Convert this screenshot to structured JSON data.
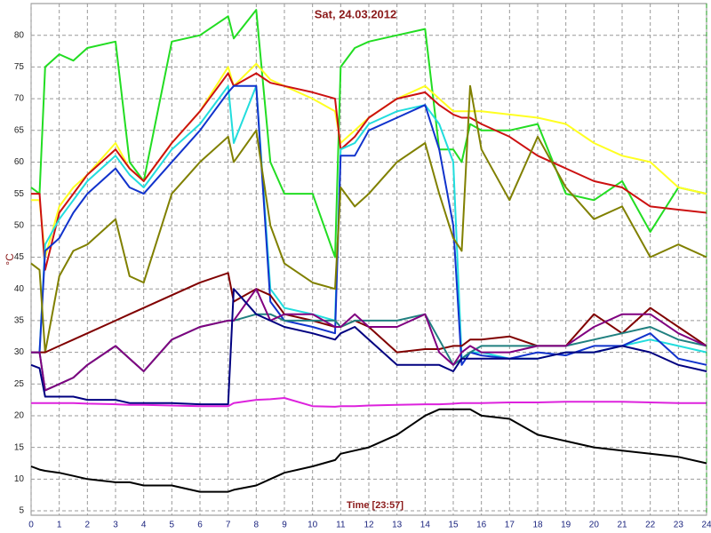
{
  "chart_data": {
    "type": "line",
    "title": "Sat, 24.03.2012",
    "x_label": "Time [23:57]",
    "y_label": "°C",
    "x": [
      0,
      0.3,
      0.5,
      1,
      1.5,
      2,
      3,
      3.5,
      4,
      5,
      6,
      7,
      7.2,
      8,
      8.5,
      9,
      10,
      10.8,
      11,
      11.5,
      12,
      13,
      14,
      14.5,
      15,
      15.3,
      15.6,
      16,
      17,
      18,
      19,
      20,
      21,
      22,
      23,
      24
    ],
    "xlim": [
      0,
      24
    ],
    "xticks": [
      0,
      1,
      2,
      3,
      4,
      5,
      6,
      7,
      8,
      9,
      10,
      11,
      12,
      13,
      14,
      15,
      16,
      17,
      18,
      19,
      20,
      21,
      22,
      23,
      24
    ],
    "ylim": [
      4.3,
      85
    ],
    "yticks": [
      5,
      10,
      15,
      20,
      25,
      30,
      35,
      40,
      45,
      50,
      55,
      60,
      65,
      70,
      75,
      80
    ],
    "grid": true,
    "series": [
      {
        "color": "#22dd22",
        "values": [
          56,
          55,
          75,
          77,
          76,
          78,
          79,
          60,
          57,
          79,
          80,
          83,
          79.5,
          84,
          60,
          55,
          55,
          45,
          75,
          78,
          79,
          80,
          81,
          62,
          62,
          60,
          66,
          65,
          65,
          66,
          55,
          54,
          57,
          49,
          56,
          55
        ]
      },
      {
        "color": "#ffff22",
        "values": [
          54,
          54,
          45,
          53,
          56,
          58,
          63,
          59,
          57,
          63,
          68,
          75,
          72,
          75.5,
          73,
          72,
          70,
          68,
          63,
          65,
          67,
          70,
          72,
          70,
          68,
          68,
          68,
          68,
          67.5,
          67,
          66,
          63,
          61,
          60,
          56,
          55
        ]
      },
      {
        "color": "#cc1111",
        "values": [
          55,
          55,
          43,
          52,
          55,
          58,
          62,
          59,
          57,
          63,
          68,
          74,
          72,
          74,
          72.5,
          72,
          71,
          70,
          62,
          64,
          67,
          70,
          71,
          69,
          67.5,
          67,
          67,
          66,
          64,
          61,
          59,
          57,
          56,
          53,
          52.5,
          52
        ]
      },
      {
        "color": "#22dddd",
        "values": [
          30,
          30,
          47,
          51,
          54,
          57,
          61,
          58,
          56,
          62,
          66,
          72,
          63,
          72,
          40,
          37,
          36,
          35,
          62,
          63,
          66,
          68,
          69,
          66,
          60,
          29,
          30,
          30,
          29,
          29,
          30,
          30,
          31,
          32,
          31,
          30
        ]
      },
      {
        "color": "#1133cc",
        "values": [
          30,
          30,
          46,
          48,
          52,
          55,
          59,
          56,
          55,
          60,
          65,
          71,
          72,
          72,
          38,
          35,
          34,
          33,
          61,
          61,
          65,
          67,
          69,
          62,
          50,
          28,
          30,
          29.5,
          29,
          30,
          29.5,
          31,
          31,
          33,
          29,
          28
        ]
      },
      {
        "color": "#808000",
        "values": [
          44,
          43,
          30,
          42,
          46,
          47,
          51,
          42,
          41,
          55,
          60,
          64,
          60,
          65,
          50,
          44,
          41,
          40,
          56,
          53,
          55,
          60,
          63,
          55,
          48,
          46,
          72,
          62,
          54,
          64,
          56,
          51,
          53,
          45,
          47,
          45
        ]
      },
      {
        "color": "#800000",
        "values": [
          30,
          30,
          30,
          31,
          32,
          33,
          35,
          36,
          37,
          39,
          41,
          42.5,
          38,
          40,
          39,
          36,
          35,
          34,
          34,
          35,
          34,
          30,
          30.5,
          30.5,
          31,
          31,
          32,
          32,
          32.5,
          31,
          31,
          36,
          33,
          37,
          34,
          31
        ]
      },
      {
        "color": "#208080",
        "values": [
          30,
          30,
          24,
          25,
          26,
          28,
          31,
          29,
          27,
          32,
          34,
          35,
          35,
          36,
          36,
          35,
          35,
          35,
          34,
          35,
          35,
          35,
          36,
          32,
          28,
          29,
          30,
          31,
          31,
          31,
          31,
          32,
          33,
          34,
          32,
          31
        ]
      },
      {
        "color": "#800080",
        "values": [
          30,
          30,
          24,
          25,
          26,
          28,
          31,
          29,
          27,
          32,
          34,
          35,
          35,
          40,
          35,
          36,
          36,
          34,
          34,
          36,
          34,
          34,
          36,
          30,
          28,
          30,
          31,
          30,
          30,
          31,
          31,
          34,
          36,
          36,
          33,
          31
        ]
      },
      {
        "color": "#000080",
        "values": [
          28,
          27.5,
          23,
          23,
          23,
          22.5,
          22.5,
          22,
          22,
          22,
          21.8,
          21.8,
          40,
          36,
          35,
          34,
          33,
          32,
          33,
          34,
          32,
          28,
          28,
          28,
          27,
          29,
          29,
          29,
          29,
          29,
          30,
          30,
          31,
          30,
          28,
          27
        ]
      },
      {
        "color": "#dd22dd",
        "values": [
          22,
          22,
          22,
          22,
          22,
          21.9,
          21.8,
          21.7,
          21.7,
          21.6,
          21.5,
          21.5,
          22,
          22.5,
          22.6,
          22.8,
          21.5,
          21.4,
          21.5,
          21.5,
          21.6,
          21.7,
          21.8,
          21.8,
          21.9,
          22,
          22,
          22,
          22.1,
          22.1,
          22.2,
          22.2,
          22.2,
          22.1,
          22,
          22
        ]
      },
      {
        "color": "#000000",
        "values": [
          12,
          11.5,
          11.3,
          11,
          10.5,
          10,
          9.5,
          9.5,
          9,
          9,
          8,
          8,
          8.3,
          9,
          10,
          11,
          12,
          13,
          14,
          14.5,
          15,
          17,
          20,
          21,
          21,
          21,
          21,
          20,
          19.5,
          17,
          16,
          15,
          14.5,
          14,
          13.5,
          12.5
        ]
      }
    ]
  }
}
